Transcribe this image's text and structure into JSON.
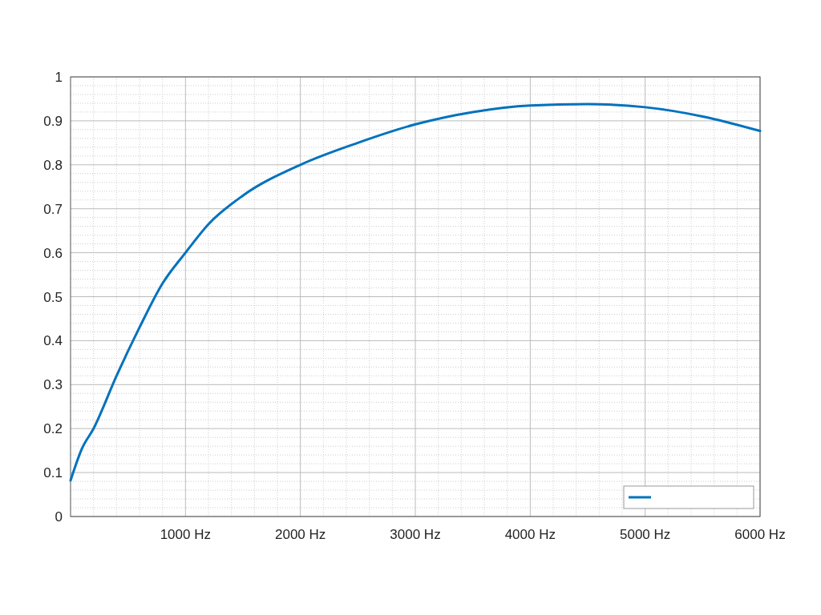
{
  "chart_data": {
    "type": "line",
    "x": [
      0,
      100,
      200,
      400,
      600,
      800,
      1000,
      1200,
      1500,
      2000,
      2500,
      3000,
      3500,
      4000,
      4500,
      5000,
      5500,
      6000
    ],
    "series": [
      {
        "color": "#0072bd",
        "values": [
          0.082,
          0.155,
          0.2,
          0.32,
          0.43,
          0.53,
          0.6,
          0.665,
          0.73,
          0.8,
          0.85,
          0.892,
          0.92,
          0.935,
          0.938,
          0.931,
          0.91,
          0.877
        ]
      }
    ],
    "xlim": [
      0,
      6000
    ],
    "xticks": [
      {
        "value": 1000,
        "label": "1000 Hz"
      },
      {
        "value": 2000,
        "label": "2000 Hz"
      },
      {
        "value": 3000,
        "label": "3000 Hz"
      },
      {
        "value": 4000,
        "label": "4000 Hz"
      },
      {
        "value": 5000,
        "label": "5000 Hz"
      },
      {
        "value": 6000,
        "label": "6000 Hz"
      }
    ],
    "ylim": [
      0,
      1
    ],
    "yticks": [
      0,
      0.1,
      0.2,
      0.3,
      0.4,
      0.5,
      0.6,
      0.7,
      0.8,
      0.9,
      1
    ],
    "grid": true,
    "line_style": "solid",
    "marker": "none"
  }
}
